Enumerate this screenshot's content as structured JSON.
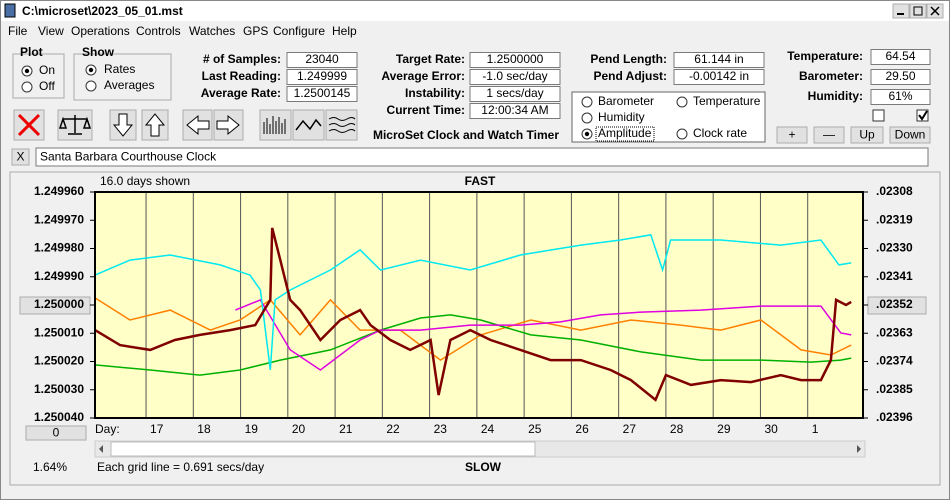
{
  "window": {
    "title": "C:\\microset\\2023_05_01.mst"
  },
  "menu": [
    "File",
    "View",
    "Operations",
    "Controls",
    "Watches",
    "GPS",
    "Configure",
    "Help"
  ],
  "plot_group": {
    "label": "Plot",
    "options": [
      "On",
      "Off"
    ]
  },
  "show_group": {
    "label": "Show",
    "options": [
      "Rates",
      "Averages"
    ]
  },
  "readouts": [
    [
      {
        "label": "# of Samples:",
        "value": "23040"
      },
      {
        "label": "Last Reading:",
        "value": "1.249999"
      },
      {
        "label": "Average Rate:",
        "value": "1.2500145"
      }
    ],
    [
      {
        "label": "Target Rate:",
        "value": "1.2500000"
      },
      {
        "label": "Average Error:",
        "value": "-1.0 sec/day"
      },
      {
        "label": "Instability:",
        "value": "1 secs/day"
      },
      {
        "label": "Current Time:",
        "value": "12:00:34 AM"
      }
    ],
    [
      {
        "label": "Pend Length:",
        "value": "61.144 in"
      },
      {
        "label": "Pend Adjust:",
        "value": "-0.00142 in"
      }
    ],
    [
      {
        "label": "Temperature:",
        "value": "64.54"
      },
      {
        "label": "Barometer:",
        "value": "29.50"
      },
      {
        "label": "Humidity:",
        "value": "61%"
      }
    ]
  ],
  "app_name": "MicroSet Clock and Watch Timer",
  "adjust_buttons": [
    "+",
    "—",
    "Up",
    "Down"
  ],
  "close_button": "X",
  "watch_name": "Santa Barbara Courthouse Clock",
  "chart_data": {
    "type": "line",
    "top_label": "FAST",
    "bottom_label": "SLOW",
    "days_shown": "16.0 days shown",
    "x_label": "Day:",
    "grid_note": "Each grid line = 0.691 secs/day",
    "percent": "1.64%",
    "scroll_button": "0",
    "invert_y": true,
    "grid": true,
    "background": "#ffffc8",
    "xlim": [
      15.92,
      32.17
    ],
    "xticks": [
      17,
      18,
      19,
      20,
      21,
      22,
      23,
      24,
      25,
      26,
      27,
      28,
      29,
      30,
      {
        "value": 31,
        "label": "1"
      }
    ],
    "ylim": [
      1.24996,
      1.25004
    ],
    "yticks": [
      {
        "value": 1.24996,
        "label": "1.249960"
      },
      {
        "value": 1.24997,
        "label": "1.249970"
      },
      {
        "value": 1.24998,
        "label": "1.249980"
      },
      {
        "value": 1.24999,
        "label": "1.249990"
      },
      {
        "value": 1.25,
        "label": "1.250000"
      },
      {
        "value": 1.25001,
        "label": "1.250010"
      },
      {
        "value": 1.25002,
        "label": "1.250020"
      },
      {
        "value": 1.25003,
        "label": "1.250030"
      },
      {
        "value": 1.25004,
        "label": "1.250040"
      }
    ],
    "y2lim": [
      0.02308,
      0.02396
    ],
    "y2ticks": [
      {
        "value": 0.02308,
        "label": ".02308"
      },
      {
        "value": 0.02319,
        "label": ".02319"
      },
      {
        "value": 0.0233,
        "label": ".02330"
      },
      {
        "value": 0.02341,
        "label": ".02341"
      },
      {
        "value": 0.02352,
        "label": ".02352"
      },
      {
        "value": 0.02363,
        "label": ".02363"
      },
      {
        "value": 0.02374,
        "label": ".02374"
      },
      {
        "value": 0.02385,
        "label": ".02385"
      },
      {
        "value": 0.02396,
        "label": ".02396"
      }
    ],
    "selected_series": 3,
    "series": [
      {
        "name": "Barometer",
        "color": "#ff8000",
        "x": [
          15.92,
          16.66,
          17.51,
          18.36,
          18.99,
          19.63,
          20.26,
          20.9,
          21.53,
          22.38,
          23.23,
          24.08,
          25.14,
          26.2,
          27.26,
          28.31,
          29.16,
          30.01,
          30.86,
          31.49,
          31.92
        ],
        "values": [
          1.2499975,
          1.2500053,
          1.2500018,
          1.2500089,
          1.2500053,
          1.2499982,
          1.2500106,
          1.2499982,
          1.2500089,
          1.2500089,
          1.2500195,
          1.2500106,
          1.2500053,
          1.2500089,
          1.2500053,
          1.2500071,
          1.2500089,
          1.2500053,
          1.2500159,
          1.2500177,
          1.2500142
        ]
      },
      {
        "name": "Temperature",
        "color": "#00b000",
        "x": [
          15.92,
          17.09,
          18.14,
          18.99,
          19.84,
          20.9,
          21.96,
          22.81,
          23.44,
          24.08,
          25.14,
          26.2,
          27.47,
          28.74,
          30.01,
          31.07,
          31.7,
          31.92
        ],
        "values": [
          1.2500212,
          1.250023,
          1.2500248,
          1.250023,
          1.2500195,
          1.2500159,
          1.2500089,
          1.2500046,
          1.2500035,
          1.2500053,
          1.2500106,
          1.2500124,
          1.2500166,
          1.2500195,
          1.2500195,
          1.2500202,
          1.2500195,
          1.2500188
        ]
      },
      {
        "name": "Humidity",
        "color": "#e000e0",
        "x": [
          18.89,
          19.42,
          20.05,
          20.69,
          21.53,
          21.96,
          22.81,
          23.86,
          24.92,
          25.77,
          26.62,
          27.47,
          28.74,
          30.01,
          31.28,
          31.7,
          31.92
        ],
        "values": [
          1.2500018,
          1.2499982,
          1.2500159,
          1.250023,
          1.2500124,
          1.2500089,
          1.2500089,
          1.2500071,
          1.2500071,
          1.250006,
          1.2500035,
          1.2500025,
          1.2500018,
          1.2500004,
          1.2500004,
          1.2500099,
          1.2500106
        ]
      },
      {
        "name": "Amplitude",
        "color": "#00e8f0",
        "x": [
          15.92,
          16.66,
          17.51,
          18.57,
          19.2,
          19.42,
          19.63,
          19.73,
          20.05,
          20.9,
          21.53,
          21.96,
          22.81,
          23.86,
          24.92,
          26.2,
          27.04,
          27.68,
          27.93,
          28.1,
          29.16,
          30.43,
          31.28,
          31.66,
          31.92
        ],
        "values": [
          1.2499894,
          1.2499841,
          1.2499823,
          1.2499858,
          1.2499894,
          1.2499947,
          1.250023,
          1.2499982,
          1.2499947,
          1.2499876,
          1.2499805,
          1.2499876,
          1.2499841,
          1.2499876,
          1.2499823,
          1.2499788,
          1.249977,
          1.2499752,
          1.2499876,
          1.249977,
          1.249977,
          1.2499788,
          1.249977,
          1.2499858,
          1.2499851
        ]
      },
      {
        "name": "Clock rate",
        "color": "#800000",
        "x": [
          15.92,
          16.45,
          17.09,
          17.61,
          18.14,
          18.78,
          19.31,
          19.63,
          19.67,
          19.84,
          20.05,
          20.26,
          20.69,
          21.11,
          21.53,
          21.75,
          22.17,
          22.59,
          23.02,
          23.19,
          23.44,
          23.86,
          24.29,
          24.92,
          25.56,
          26.2,
          26.83,
          27.26,
          27.78,
          28.0,
          28.53,
          29.16,
          29.8,
          30.43,
          30.86,
          31.28,
          31.49,
          31.6,
          31.81,
          31.92
        ],
        "values": [
          1.2500089,
          1.2500142,
          1.2500159,
          1.2500124,
          1.2500106,
          1.2500089,
          1.2500071,
          1.2499982,
          1.2499727,
          1.2499841,
          1.2499982,
          1.2500018,
          1.2500124,
          1.2500053,
          1.2500018,
          1.2500071,
          1.2500124,
          1.2500159,
          1.2500124,
          1.2500319,
          1.2500124,
          1.2500089,
          1.2500124,
          1.2500159,
          1.2500195,
          1.2500195,
          1.250023,
          1.2500266,
          1.2500336,
          1.2500248,
          1.2500283,
          1.2500266,
          1.2500273,
          1.2500248,
          1.2500266,
          1.2500266,
          1.2500195,
          1.2499982,
          1.25,
          1.2499989
        ]
      }
    ]
  }
}
